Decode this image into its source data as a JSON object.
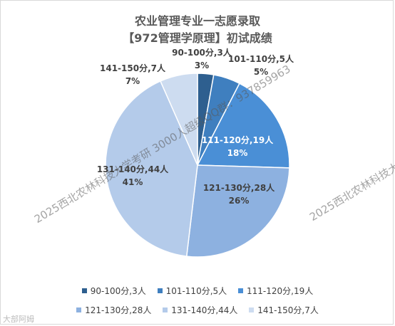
{
  "title_line1": "农业管理专业一志愿录取",
  "title_line2": "【972管理学原理】初试成绩",
  "chart_data": {
    "type": "pie",
    "title": "农业管理专业一志愿录取【972管理学原理】初试成绩",
    "slices": [
      {
        "name": "90-100分,3人",
        "value": 3,
        "label_name": "90-100分,3人",
        "label_pct": "3%",
        "color": "#2e5f8f"
      },
      {
        "name": "101-110分,5人",
        "value": 5,
        "label_name": "101-110分,5人",
        "label_pct": "5%",
        "color": "#3f7fbf"
      },
      {
        "name": "111-120分,19人",
        "value": 19,
        "label_name": "111-120分,19人",
        "label_pct": "18%",
        "color": "#4a8fd6"
      },
      {
        "name": "121-130分,28人",
        "value": 28,
        "label_name": "121-130分,28人",
        "label_pct": "26%",
        "color": "#8db1e0"
      },
      {
        "name": "131-140分,44人",
        "value": 44,
        "label_name": "131-140分,44人",
        "label_pct": "41%",
        "color": "#b4cbea"
      },
      {
        "name": "141-150分,7人",
        "value": 7,
        "label_name": "141-150分,7人",
        "label_pct": "7%",
        "color": "#cddcf0"
      }
    ],
    "legend_placement": "bottom"
  },
  "watermarks": [
    "2025西北农林科技大学考研 3000人超级QQ群：937859963",
    "2025西北农林科技大学考研"
  ],
  "corner_logo": "大部阿姆"
}
